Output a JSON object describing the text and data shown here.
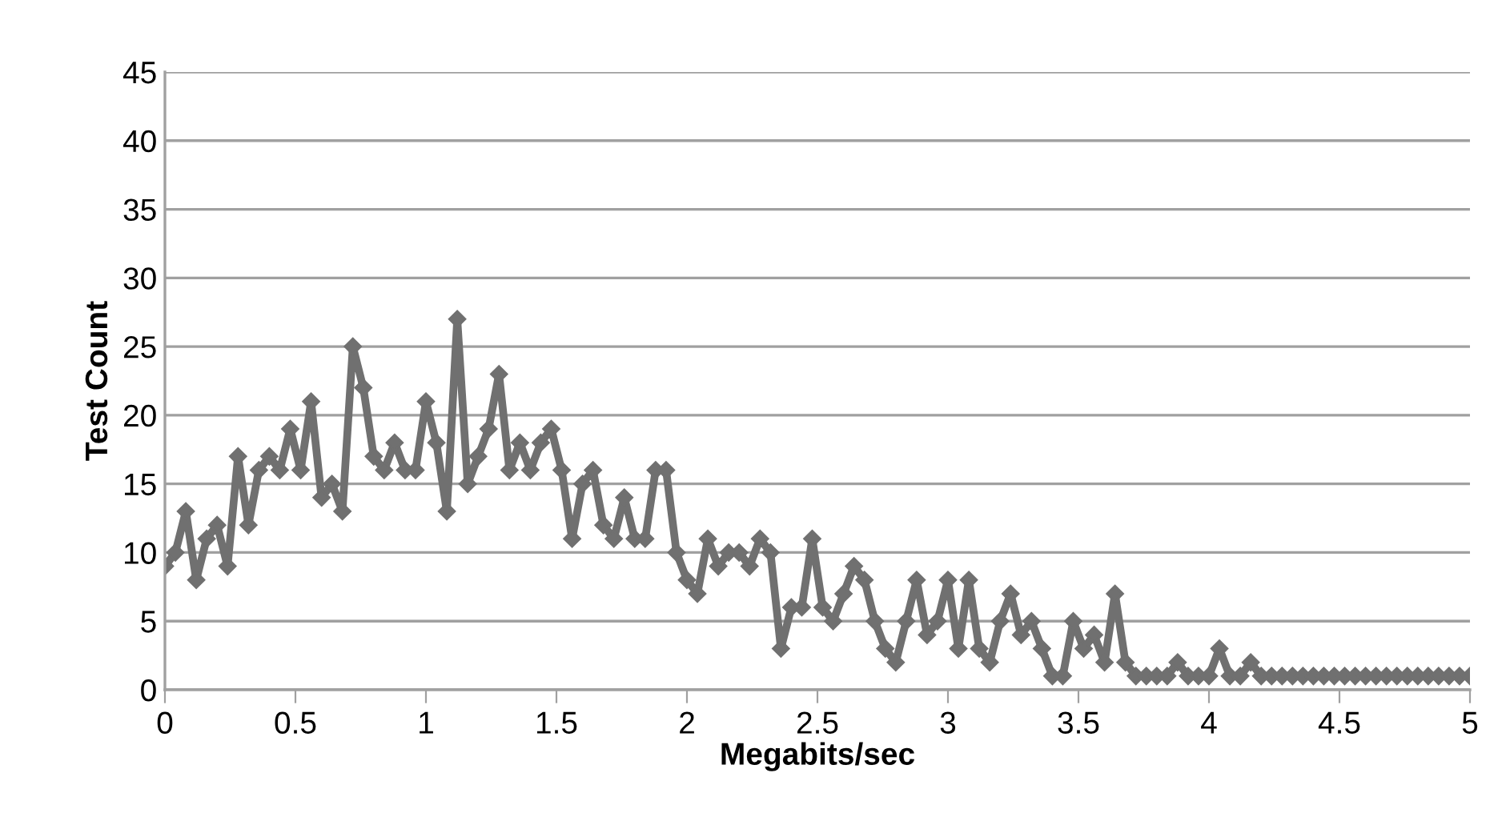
{
  "chart_data": {
    "type": "line",
    "xlabel": "Megabits/sec",
    "ylabel": "Test Count",
    "xlim": [
      0,
      5
    ],
    "xticks": [
      0,
      0.5,
      1,
      1.5,
      2,
      2.5,
      3,
      3.5,
      4,
      4.5,
      5
    ],
    "ylim": [
      0,
      45
    ],
    "yticks": [
      0,
      5,
      10,
      15,
      20,
      25,
      30,
      35,
      40,
      45
    ],
    "grid": "y",
    "marker": "diamond",
    "line_style": "solid",
    "series": [
      {
        "color": "#707070",
        "x": [
          0,
          0.04,
          0.08,
          0.12,
          0.16,
          0.2,
          0.24,
          0.28,
          0.32,
          0.36,
          0.4,
          0.44,
          0.48,
          0.52,
          0.56,
          0.6,
          0.64,
          0.68,
          0.72,
          0.76,
          0.8,
          0.84,
          0.88,
          0.92,
          0.96,
          1.0,
          1.04,
          1.08,
          1.12,
          1.16,
          1.2,
          1.24,
          1.28,
          1.32,
          1.36,
          1.4,
          1.44,
          1.48,
          1.52,
          1.56,
          1.6,
          1.64,
          1.68,
          1.72,
          1.76,
          1.8,
          1.84,
          1.88,
          1.92,
          1.96,
          2.0,
          2.04,
          2.08,
          2.12,
          2.16,
          2.2,
          2.24,
          2.28,
          2.32,
          2.36,
          2.4,
          2.44,
          2.48,
          2.52,
          2.56,
          2.6,
          2.64,
          2.68,
          2.72,
          2.76,
          2.8,
          2.84,
          2.88,
          2.92,
          2.96,
          3.0,
          3.04,
          3.08,
          3.12,
          3.16,
          3.2,
          3.24,
          3.28,
          3.32,
          3.36,
          3.4,
          3.44,
          3.48,
          3.52,
          3.56,
          3.6,
          3.64,
          3.68,
          3.72,
          3.76,
          3.8,
          3.84,
          3.88,
          3.92,
          3.96,
          4.0,
          4.04,
          4.08,
          4.12,
          4.16,
          4.2,
          4.24,
          4.28,
          4.32,
          4.36,
          4.4,
          4.44,
          4.48,
          4.52,
          4.56,
          4.6,
          4.64,
          4.68,
          4.72,
          4.76,
          4.8,
          4.84,
          4.88,
          4.92,
          4.96,
          5.0
        ],
        "values": [
          9,
          10,
          13,
          8,
          11,
          12,
          9,
          17,
          12,
          16,
          17,
          16,
          19,
          16,
          21,
          14,
          15,
          13,
          25,
          22,
          17,
          16,
          18,
          16,
          16,
          21,
          18,
          13,
          27,
          15,
          17,
          19,
          23,
          16,
          18,
          16,
          18,
          19,
          16,
          11,
          15,
          16,
          12,
          11,
          14,
          11,
          11,
          16,
          16,
          10,
          8,
          7,
          11,
          9,
          10,
          10,
          9,
          11,
          10,
          3,
          6,
          6,
          11,
          6,
          5,
          7,
          9,
          8,
          5,
          3,
          2,
          5,
          8,
          4,
          5,
          8,
          3,
          8,
          3,
          2,
          5,
          7,
          4,
          5,
          3,
          1,
          1,
          5,
          3,
          4,
          2,
          7,
          2,
          1,
          1,
          1,
          1,
          2,
          1,
          1,
          1,
          3,
          1,
          1,
          2,
          1,
          1,
          1,
          1,
          1,
          1,
          1,
          1,
          1,
          1,
          1,
          1,
          1,
          1,
          1,
          1,
          1,
          1,
          1,
          1,
          1
        ]
      }
    ]
  }
}
